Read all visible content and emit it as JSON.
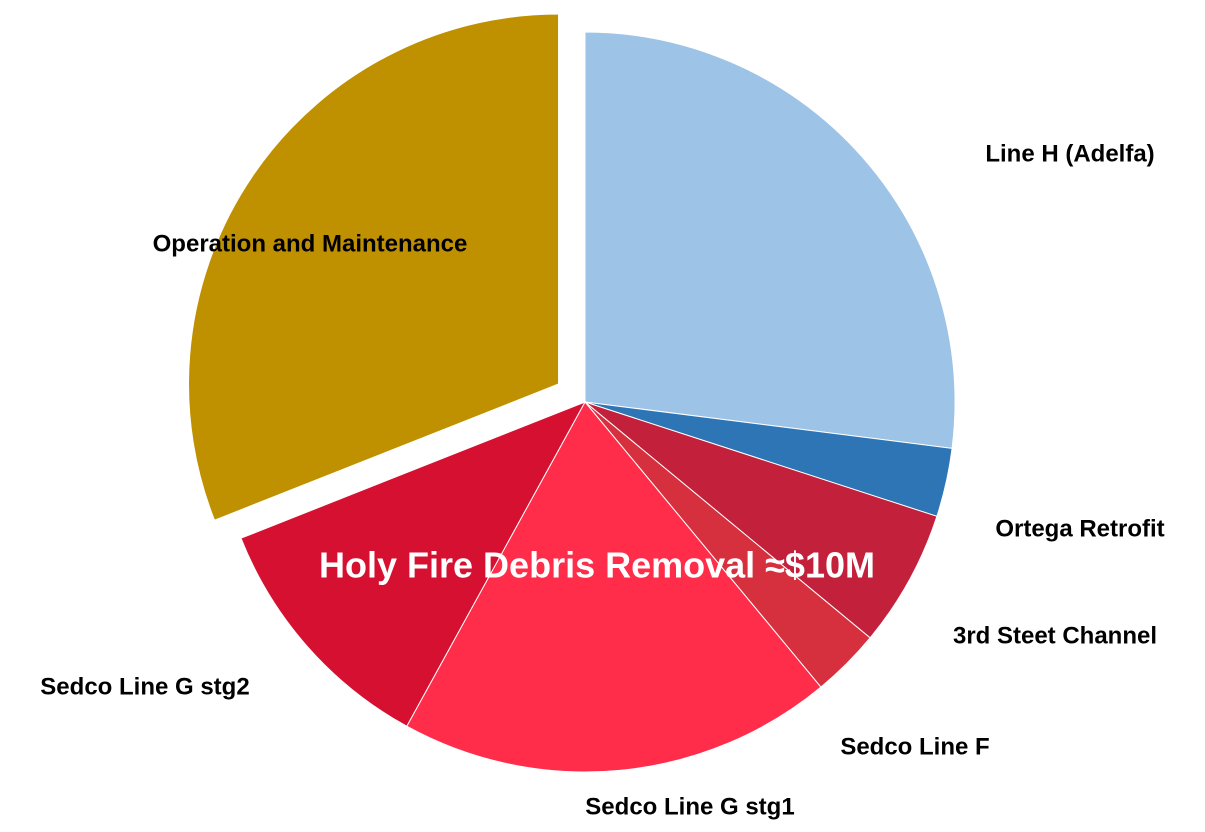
{
  "chart_data": {
    "type": "pie",
    "categories": [
      "Line H (Adelfa)",
      "Ortega Retrofit",
      "3rd Steet Channel",
      "Sedco Line F",
      "Sedco Line G stg1",
      "Sedco Line G stg2",
      "Operation and Maintenance"
    ],
    "values": [
      27,
      3,
      6,
      3,
      19,
      11,
      31
    ],
    "colors": [
      "#9dc3e6",
      "#2e75b6",
      "#c3203b",
      "#d6303f",
      "#ff2d4a",
      "#d61030",
      "#bf9000"
    ],
    "annotation": "Holy Fire Debris Removal ≈$10M"
  }
}
